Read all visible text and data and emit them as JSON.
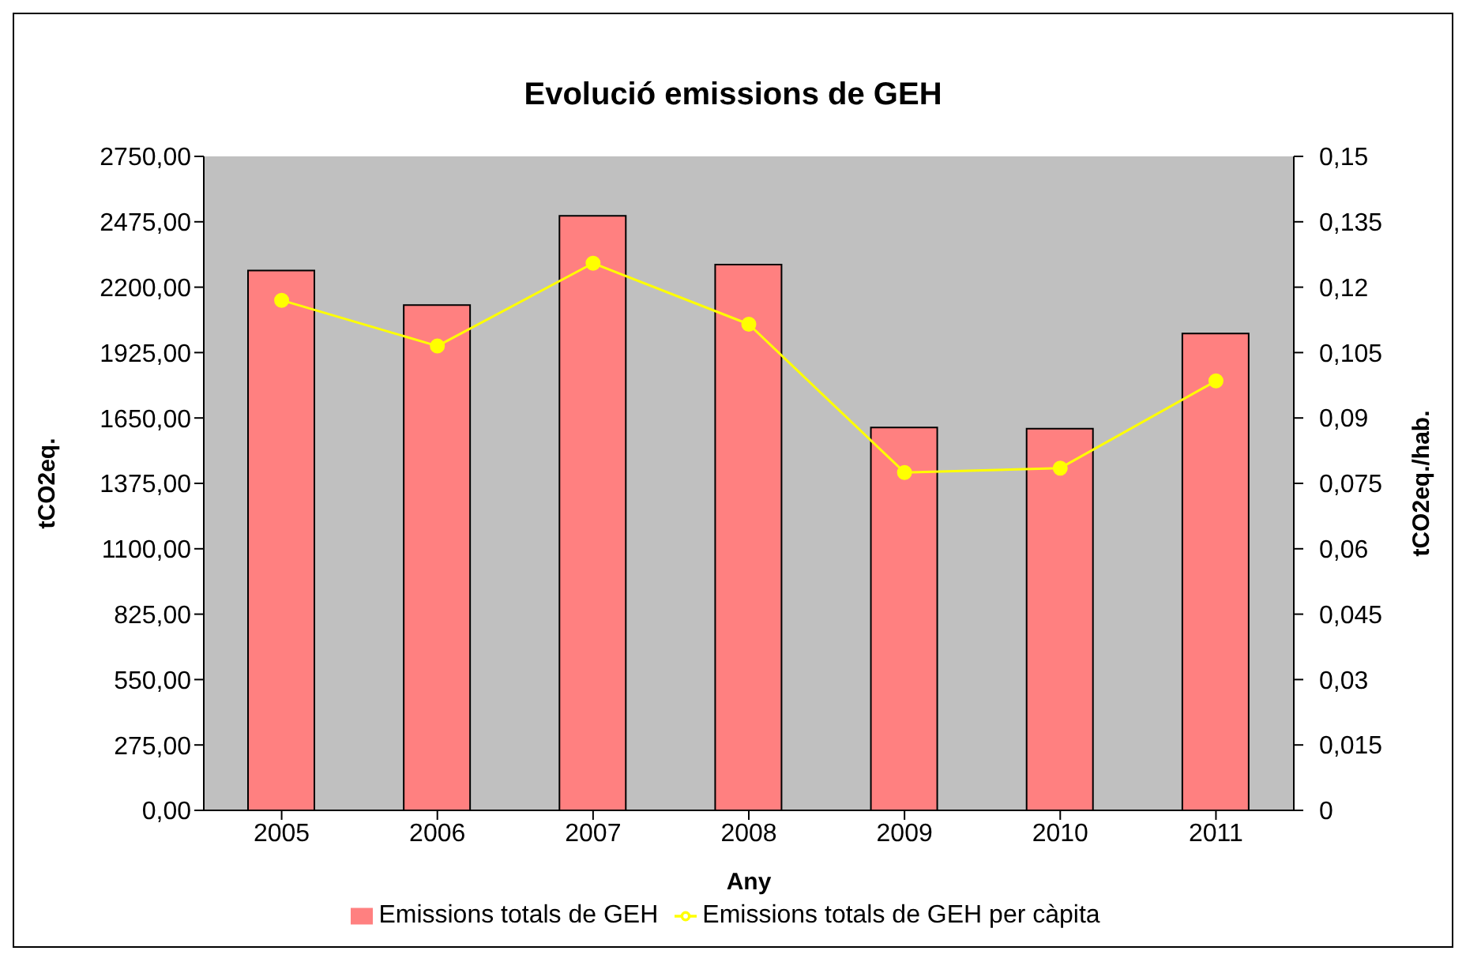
{
  "chart_data": {
    "type": "bar",
    "title": "Evolució emissions de GEH",
    "xlabel": "Any",
    "ylabel": "tCO2eq.",
    "y2label": "tCO2eq./hab.",
    "categories": [
      "2005",
      "2006",
      "2007",
      "2008",
      "2009",
      "2010",
      "2011"
    ],
    "series": [
      {
        "name": "Emissions totals de GEH",
        "color": "#ff8080",
        "values": [
          2270,
          2125,
          2500,
          2295,
          1610,
          1605,
          2005
        ]
      },
      {
        "name": "Emissions totals de GEH per càpita",
        "type": "line",
        "axis": "y2",
        "color": "#ffff00",
        "marker": "circle",
        "values": [
          0.117,
          0.1065,
          0.1255,
          0.1115,
          0.0775,
          0.0785,
          0.0985
        ]
      }
    ],
    "ylim": [
      0,
      2750
    ],
    "yticks": [
      {
        "value": 0,
        "label": "0,00"
      },
      {
        "value": 275,
        "label": "275,00"
      },
      {
        "value": 550,
        "label": "550,00"
      },
      {
        "value": 825,
        "label": "825,00"
      },
      {
        "value": 1100,
        "label": "1100,00"
      },
      {
        "value": 1375,
        "label": "1375,00"
      },
      {
        "value": 1650,
        "label": "1650,00"
      },
      {
        "value": 1925,
        "label": "1925,00"
      },
      {
        "value": 2200,
        "label": "2200,00"
      },
      {
        "value": 2475,
        "label": "2475,00"
      },
      {
        "value": 2750,
        "label": "2750,00"
      }
    ],
    "y2lim": [
      0,
      0.15
    ],
    "y2ticks": [
      0,
      {
        "value": 0.015,
        "label": "0,015"
      },
      {
        "value": 0.03,
        "label": "0,03"
      },
      {
        "value": 0.045,
        "label": "0,045"
      },
      {
        "value": 0.06,
        "label": "0,06"
      },
      {
        "value": 0.075,
        "label": "0,075"
      },
      {
        "value": 0.09,
        "label": "0,09"
      },
      {
        "value": 0.105,
        "label": "0,105"
      },
      {
        "value": 0.12,
        "label": "0,12"
      },
      {
        "value": 0.135,
        "label": "0,135"
      },
      {
        "value": 0.15,
        "label": "0,15"
      }
    ],
    "grid": false,
    "legend": "bottom"
  }
}
